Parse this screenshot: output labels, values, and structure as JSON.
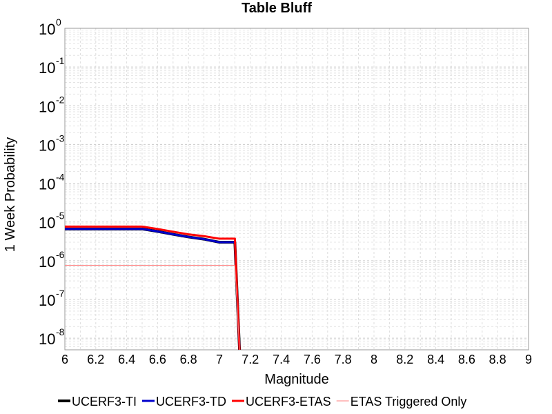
{
  "chart_data": {
    "type": "line",
    "title": "Table Bluff",
    "xlabel": "Magnitude",
    "ylabel": "1 Week Probability",
    "xlim": [
      6,
      9
    ],
    "ylim": [
      5e-09,
      1
    ],
    "y_scale": "log",
    "grid": true,
    "legend_position": "bottom",
    "x_ticks": [
      "6",
      "6.2",
      "6.4",
      "6.6",
      "6.8",
      "7",
      "7.2",
      "7.4",
      "7.6",
      "7.8",
      "8",
      "8.2",
      "8.4",
      "8.6",
      "8.8",
      "9"
    ],
    "y_ticks": [
      {
        "base": "10",
        "exp": "0"
      },
      {
        "base": "10",
        "exp": "-1"
      },
      {
        "base": "10",
        "exp": "-2"
      },
      {
        "base": "10",
        "exp": "-3"
      },
      {
        "base": "10",
        "exp": "-4"
      },
      {
        "base": "10",
        "exp": "-5"
      },
      {
        "base": "10",
        "exp": "-6"
      },
      {
        "base": "10",
        "exp": "-7"
      },
      {
        "base": "10",
        "exp": "-8"
      }
    ],
    "series": [
      {
        "name": "UCERF3-TI",
        "color": "#000000",
        "x": [
          6.0,
          6.1,
          6.2,
          6.3,
          6.4,
          6.5,
          6.6,
          6.7,
          6.8,
          6.9,
          7.0,
          7.1,
          7.13
        ],
        "y": [
          6.6e-06,
          6.6e-06,
          6.6e-06,
          6.6e-06,
          6.6e-06,
          6.6e-06,
          5.7e-06,
          4.8e-06,
          4.1e-06,
          3.6e-06,
          3e-06,
          3e-06,
          5e-09
        ]
      },
      {
        "name": "UCERF3-TD",
        "color": "#0000cc",
        "x": [
          6.0,
          6.1,
          6.2,
          6.3,
          6.4,
          6.5,
          6.6,
          6.7,
          6.8,
          6.9,
          7.0,
          7.1,
          7.13
        ],
        "y": [
          6.6e-06,
          6.6e-06,
          6.6e-06,
          6.6e-06,
          6.6e-06,
          6.6e-06,
          5.7e-06,
          4.8e-06,
          4.1e-06,
          3.6e-06,
          3e-06,
          3e-06,
          5e-09
        ]
      },
      {
        "name": "UCERF3-ETAS",
        "color": "#ff0000",
        "x": [
          6.0,
          6.1,
          6.2,
          6.3,
          6.4,
          6.5,
          6.6,
          6.7,
          6.8,
          6.9,
          7.0,
          7.1,
          7.13
        ],
        "y": [
          7.6e-06,
          7.6e-06,
          7.6e-06,
          7.6e-06,
          7.6e-06,
          7.6e-06,
          6.6e-06,
          5.6e-06,
          4.8e-06,
          4.3e-06,
          3.7e-06,
          3.7e-06,
          5e-09
        ]
      },
      {
        "name": "ETAS Triggered Only",
        "color": "#ff7f7f",
        "x": [
          6.0,
          7.1,
          7.13
        ],
        "y": [
          7.6e-07,
          7.6e-07,
          5e-09
        ]
      }
    ]
  }
}
